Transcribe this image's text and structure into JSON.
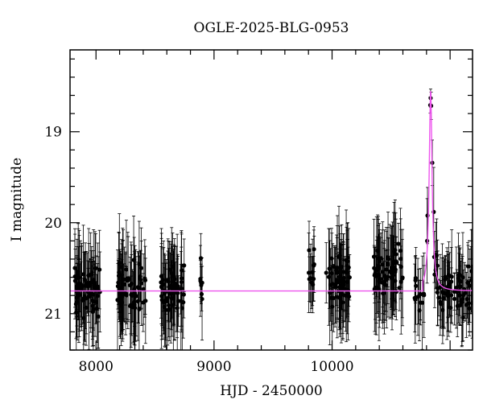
{
  "chart_data": {
    "type": "scatter",
    "title": "OGLE-2025-BLG-0953",
    "xlabel": "HJD - 2450000",
    "ylabel": "I magnitude",
    "xlim": [
      7780,
      11190
    ],
    "ylim": [
      21.4,
      18.1
    ],
    "y_inverted": true,
    "x_ticks": [
      8000,
      9000,
      10000
    ],
    "y_ticks": [
      19,
      20,
      21
    ],
    "grid": false,
    "legend": "none",
    "colors": {
      "data": "#000000",
      "model": "#ee55ee"
    },
    "model": {
      "name": "",
      "baseline": 20.75,
      "t0": 10835,
      "peak_mag": 18.55,
      "rise_start": 10770
    },
    "observation_seasons": [
      {
        "start": 7820,
        "end": 8040,
        "n": 70,
        "mean_mag": 20.75,
        "errorbar": 0.45
      },
      {
        "start": 8180,
        "end": 8420,
        "n": 70,
        "mean_mag": 20.75,
        "errorbar": 0.45
      },
      {
        "start": 8550,
        "end": 8750,
        "n": 60,
        "mean_mag": 20.75,
        "errorbar": 0.45
      },
      {
        "start": 8880,
        "end": 8900,
        "n": 8,
        "mean_mag": 20.72,
        "errorbar": 0.35
      },
      {
        "start": 9800,
        "end": 9850,
        "n": 12,
        "mean_mag": 20.55,
        "errorbar": 0.4
      },
      {
        "start": 9950,
        "end": 10150,
        "n": 60,
        "mean_mag": 20.65,
        "errorbar": 0.45
      },
      {
        "start": 10350,
        "end": 10600,
        "n": 70,
        "mean_mag": 20.55,
        "errorbar": 0.45
      },
      {
        "start": 10700,
        "end": 11190,
        "n": 90,
        "mean_mag": 20.6,
        "errorbar": 0.4
      }
    ]
  }
}
